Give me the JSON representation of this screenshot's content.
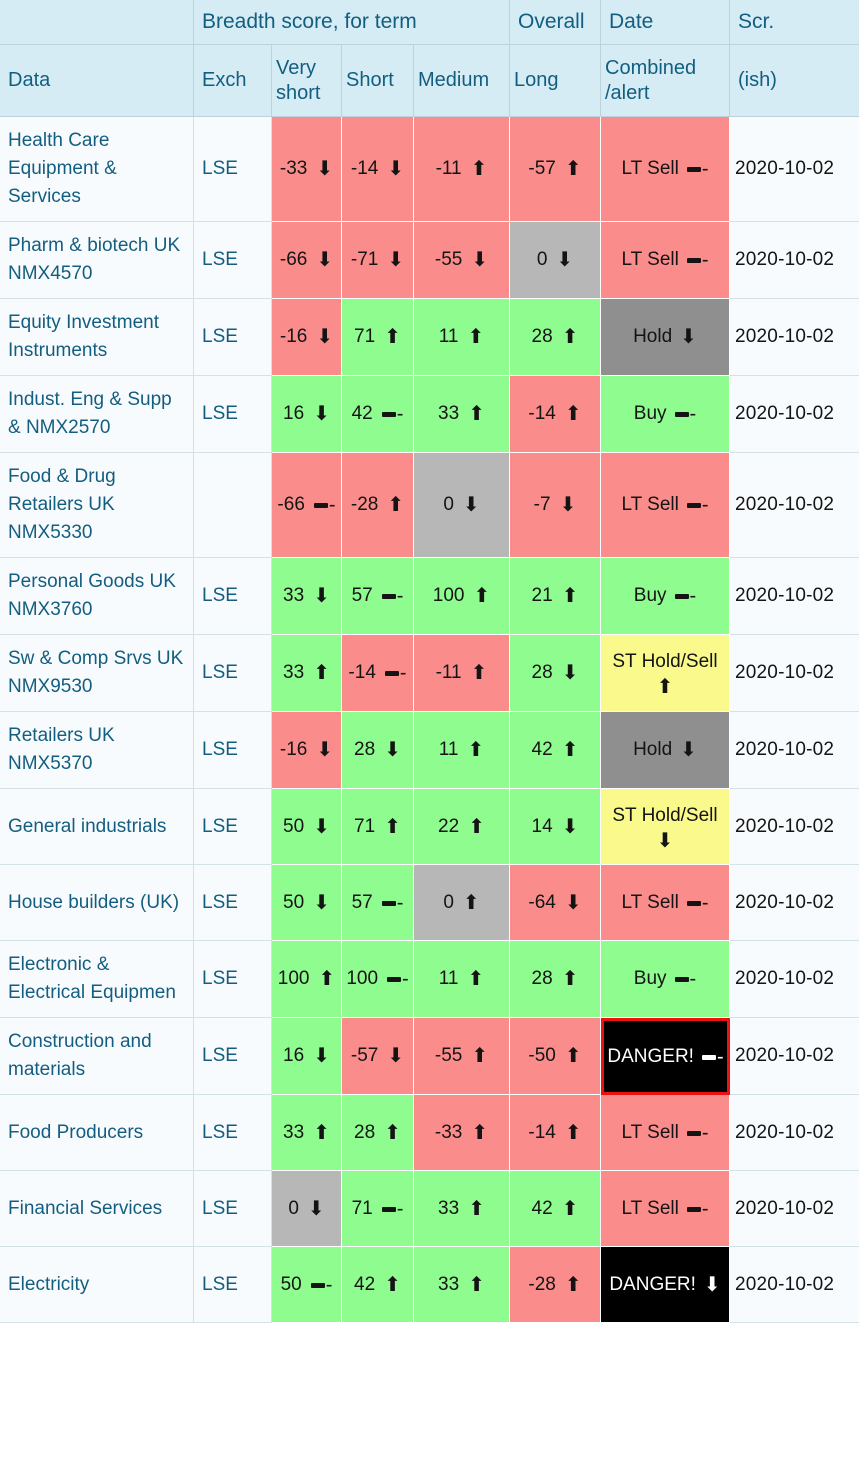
{
  "colors": {
    "red": "#fb8c8c",
    "green": "#8efc8e",
    "neutral": "#b7b7b7",
    "hold": "#8f8f8f",
    "caution": "#fafa8c",
    "danger": "#000000",
    "danger_border": "#ee1111",
    "header_bg": "#d5ecf5",
    "header_text": "#135e80",
    "plain_cell_bg": "#f8fbfd"
  },
  "header": {
    "group_cells": [
      {
        "label": ""
      },
      {
        "label": "Breadth score, for term"
      },
      {
        "label": "Overall"
      },
      {
        "label": "Date"
      },
      {
        "label": "Scr."
      }
    ],
    "columns": [
      "Data",
      "Exch",
      "Very\nshort",
      "Short",
      "Medium",
      "Long",
      "Combined\n/alert",
      "(ish)"
    ]
  },
  "rows": [
    {
      "name": "Health Care Equipment & Services",
      "exch": "LSE",
      "scores": [
        {
          "value": "-33",
          "trend": "down",
          "color": "red"
        },
        {
          "value": "-14",
          "trend": "down",
          "color": "red"
        },
        {
          "value": "-11",
          "trend": "up",
          "color": "red"
        },
        {
          "value": "-57",
          "trend": "up",
          "color": "red"
        }
      ],
      "combined": {
        "label": "LT Sell",
        "trend": "flat",
        "color": "red",
        "alert": false
      },
      "date": "2020-10-02"
    },
    {
      "name": "Pharm & biotech UK NMX4570",
      "exch": "LSE",
      "scores": [
        {
          "value": "-66",
          "trend": "down",
          "color": "red"
        },
        {
          "value": "-71",
          "trend": "down",
          "color": "red"
        },
        {
          "value": "-55",
          "trend": "down",
          "color": "red"
        },
        {
          "value": "0",
          "trend": "down",
          "color": "neutral"
        }
      ],
      "combined": {
        "label": "LT Sell",
        "trend": "flat",
        "color": "red",
        "alert": false
      },
      "date": "2020-10-02"
    },
    {
      "name": "Equity Investment Instruments",
      "exch": "LSE",
      "scores": [
        {
          "value": "-16",
          "trend": "down",
          "color": "red"
        },
        {
          "value": "71",
          "trend": "up",
          "color": "green"
        },
        {
          "value": "11",
          "trend": "up",
          "color": "green"
        },
        {
          "value": "28",
          "trend": "up",
          "color": "green"
        }
      ],
      "combined": {
        "label": "Hold",
        "trend": "down",
        "color": "hold",
        "alert": false
      },
      "date": "2020-10-02"
    },
    {
      "name": "Indust. Eng & Supp & NMX2570",
      "exch": "LSE",
      "scores": [
        {
          "value": "16",
          "trend": "down",
          "color": "green"
        },
        {
          "value": "42",
          "trend": "flat",
          "color": "green"
        },
        {
          "value": "33",
          "trend": "up",
          "color": "green"
        },
        {
          "value": "-14",
          "trend": "up",
          "color": "red"
        }
      ],
      "combined": {
        "label": "Buy",
        "trend": "flat",
        "color": "green",
        "alert": false
      },
      "date": "2020-10-02"
    },
    {
      "name": "Food & Drug Retailers UK NMX5330",
      "exch": "",
      "scores": [
        {
          "value": "-66",
          "trend": "flat",
          "color": "red"
        },
        {
          "value": "-28",
          "trend": "up",
          "color": "red"
        },
        {
          "value": "0",
          "trend": "down",
          "color": "neutral"
        },
        {
          "value": "-7",
          "trend": "down",
          "color": "red"
        }
      ],
      "combined": {
        "label": "LT Sell",
        "trend": "flat",
        "color": "red",
        "alert": false
      },
      "date": "2020-10-02"
    },
    {
      "name": "Personal Goods UK NMX3760",
      "exch": "LSE",
      "scores": [
        {
          "value": "33",
          "trend": "down",
          "color": "green"
        },
        {
          "value": "57",
          "trend": "flat",
          "color": "green"
        },
        {
          "value": "100",
          "trend": "up",
          "color": "green"
        },
        {
          "value": "21",
          "trend": "up",
          "color": "green"
        }
      ],
      "combined": {
        "label": "Buy",
        "trend": "flat",
        "color": "green",
        "alert": false
      },
      "date": "2020-10-02"
    },
    {
      "name": "Sw & Comp Srvs UK NMX9530",
      "exch": "LSE",
      "scores": [
        {
          "value": "33",
          "trend": "up",
          "color": "green"
        },
        {
          "value": "-14",
          "trend": "flat",
          "color": "red"
        },
        {
          "value": "-11",
          "trend": "up",
          "color": "red"
        },
        {
          "value": "28",
          "trend": "down",
          "color": "green"
        }
      ],
      "combined": {
        "label": "ST Hold/Sell",
        "trend": "up",
        "color": "caution",
        "alert": false
      },
      "date": "2020-10-02"
    },
    {
      "name": "Retailers UK NMX5370",
      "exch": "LSE",
      "scores": [
        {
          "value": "-16",
          "trend": "down",
          "color": "red"
        },
        {
          "value": "28",
          "trend": "down",
          "color": "green"
        },
        {
          "value": "11",
          "trend": "up",
          "color": "green"
        },
        {
          "value": "42",
          "trend": "up",
          "color": "green"
        }
      ],
      "combined": {
        "label": "Hold",
        "trend": "down",
        "color": "hold",
        "alert": false
      },
      "date": "2020-10-02"
    },
    {
      "name": "General industrials",
      "exch": "LSE",
      "scores": [
        {
          "value": "50",
          "trend": "down",
          "color": "green"
        },
        {
          "value": "71",
          "trend": "up",
          "color": "green"
        },
        {
          "value": "22",
          "trend": "up",
          "color": "green"
        },
        {
          "value": "14",
          "trend": "down",
          "color": "green"
        }
      ],
      "combined": {
        "label": "ST Hold/Sell",
        "trend": "down",
        "color": "caution",
        "alert": false
      },
      "date": "2020-10-02"
    },
    {
      "name": "House builders (UK)",
      "exch": "LSE",
      "scores": [
        {
          "value": "50",
          "trend": "down",
          "color": "green"
        },
        {
          "value": "57",
          "trend": "flat",
          "color": "green"
        },
        {
          "value": "0",
          "trend": "up",
          "color": "neutral"
        },
        {
          "value": "-64",
          "trend": "down",
          "color": "red"
        }
      ],
      "combined": {
        "label": "LT Sell",
        "trend": "flat",
        "color": "red",
        "alert": false
      },
      "date": "2020-10-02"
    },
    {
      "name": "Electronic & Electrical Equipmen",
      "exch": "LSE",
      "scores": [
        {
          "value": "100",
          "trend": "up",
          "color": "green"
        },
        {
          "value": "100",
          "trend": "flat",
          "color": "green"
        },
        {
          "value": "11",
          "trend": "up",
          "color": "green"
        },
        {
          "value": "28",
          "trend": "up",
          "color": "green"
        }
      ],
      "combined": {
        "label": "Buy",
        "trend": "flat",
        "color": "green",
        "alert": false
      },
      "date": "2020-10-02"
    },
    {
      "name": "Construction and materials",
      "exch": "LSE",
      "scores": [
        {
          "value": "16",
          "trend": "down",
          "color": "green"
        },
        {
          "value": "-57",
          "trend": "down",
          "color": "red"
        },
        {
          "value": "-55",
          "trend": "up",
          "color": "red"
        },
        {
          "value": "-50",
          "trend": "up",
          "color": "red"
        }
      ],
      "combined": {
        "label": "DANGER!",
        "trend": "flat",
        "color": "danger",
        "alert": true
      },
      "date": "2020-10-02"
    },
    {
      "name": "Food Producers",
      "exch": "LSE",
      "scores": [
        {
          "value": "33",
          "trend": "up",
          "color": "green"
        },
        {
          "value": "28",
          "trend": "up",
          "color": "green"
        },
        {
          "value": "-33",
          "trend": "up",
          "color": "red"
        },
        {
          "value": "-14",
          "trend": "up",
          "color": "red"
        }
      ],
      "combined": {
        "label": "LT Sell",
        "trend": "flat",
        "color": "red",
        "alert": false
      },
      "date": "2020-10-02"
    },
    {
      "name": "Financial Services",
      "exch": "LSE",
      "scores": [
        {
          "value": "0",
          "trend": "down",
          "color": "neutral"
        },
        {
          "value": "71",
          "trend": "flat",
          "color": "green"
        },
        {
          "value": "33",
          "trend": "up",
          "color": "green"
        },
        {
          "value": "42",
          "trend": "up",
          "color": "green"
        }
      ],
      "combined": {
        "label": "LT Sell",
        "trend": "flat",
        "color": "red",
        "alert": false
      },
      "date": "2020-10-02"
    },
    {
      "name": "Electricity",
      "exch": "LSE",
      "scores": [
        {
          "value": "50",
          "trend": "flat",
          "color": "green"
        },
        {
          "value": "42",
          "trend": "up",
          "color": "green"
        },
        {
          "value": "33",
          "trend": "up",
          "color": "green"
        },
        {
          "value": "-28",
          "trend": "up",
          "color": "red"
        }
      ],
      "combined": {
        "label": "DANGER!",
        "trend": "down",
        "color": "danger",
        "alert": false
      },
      "date": "2020-10-02"
    }
  ]
}
